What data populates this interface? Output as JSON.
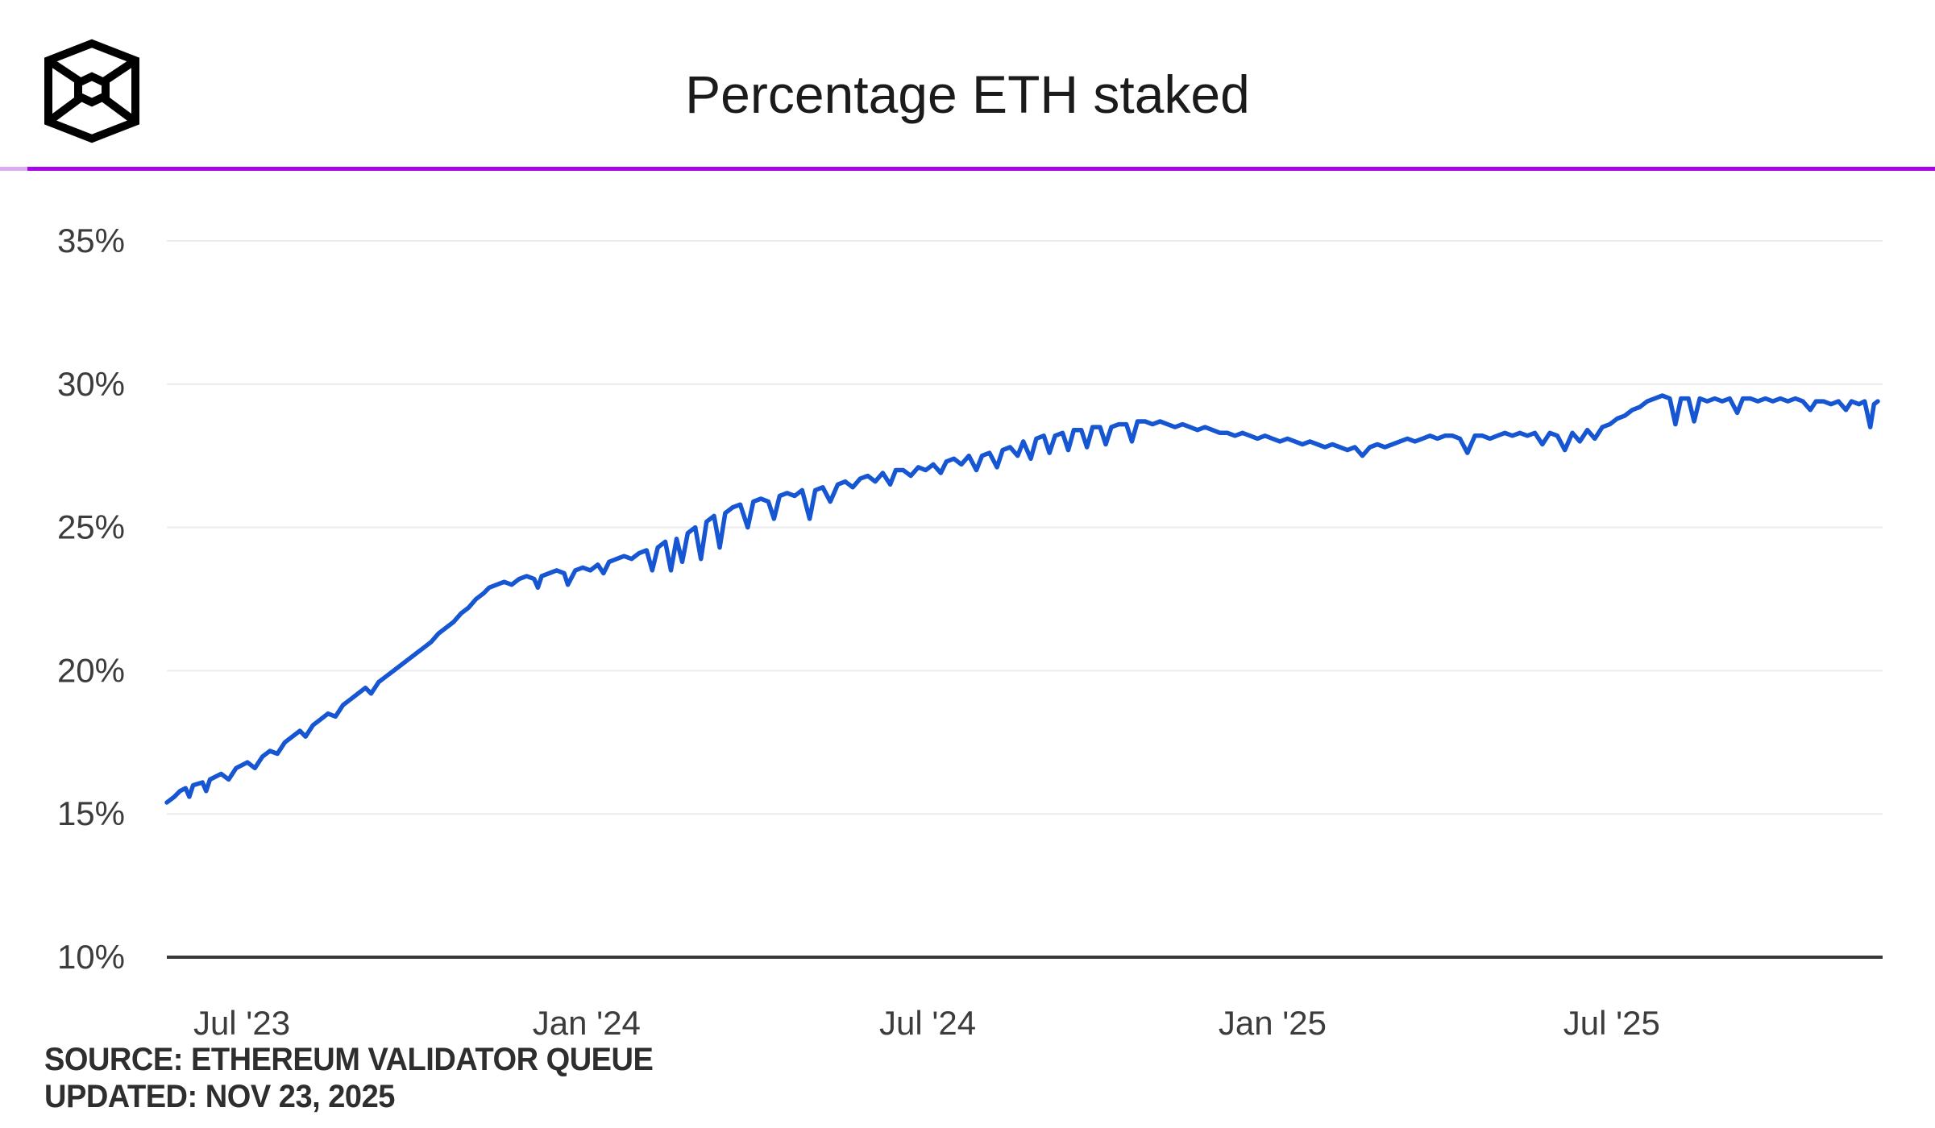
{
  "header": {
    "logo": "blockworks-cube-logo",
    "title": "Percentage ETH staked",
    "divider_color": "#A704E9"
  },
  "footer": {
    "source": "SOURCE: ETHEREUM VALIDATOR QUEUE",
    "updated": "UPDATED: NOV 23, 2025"
  },
  "chart_data": {
    "type": "line",
    "title": "Percentage ETH staked",
    "series_name": "Percentage ETH staked",
    "line_color": "#1656D2",
    "grid": true,
    "grid_color": "#ececec",
    "axis_color": "#383838",
    "tick_color": "#3c3c3c",
    "ylim": [
      10,
      35
    ],
    "y_unit": "%",
    "x_range": [
      "2023-05-22",
      "2025-11-20"
    ],
    "y_ticks": [
      {
        "label": "35%",
        "value": 35
      },
      {
        "label": "30%",
        "value": 30
      },
      {
        "label": "25%",
        "value": 25
      },
      {
        "label": "20%",
        "value": 20
      },
      {
        "label": "15%",
        "value": 15
      },
      {
        "label": "10%",
        "value": 10
      }
    ],
    "x_ticks": [
      {
        "label": "Jul '23",
        "date": "2023-07-01"
      },
      {
        "label": "Jan '24",
        "date": "2024-01-01"
      },
      {
        "label": "Jul '24",
        "date": "2024-07-01"
      },
      {
        "label": "Jan '25",
        "date": "2025-01-01"
      },
      {
        "label": "Jul '25",
        "date": "2025-07-01"
      }
    ],
    "points": [
      [
        "2023-05-22",
        15.4
      ],
      [
        "2023-05-26",
        15.6
      ],
      [
        "2023-05-29",
        15.8
      ],
      [
        "2023-06-01",
        15.9
      ],
      [
        "2023-06-03",
        15.6
      ],
      [
        "2023-06-05",
        16.0
      ],
      [
        "2023-06-10",
        16.1
      ],
      [
        "2023-06-12",
        15.8
      ],
      [
        "2023-06-14",
        16.2
      ],
      [
        "2023-06-20",
        16.4
      ],
      [
        "2023-06-24",
        16.2
      ],
      [
        "2023-06-28",
        16.6
      ],
      [
        "2023-07-04",
        16.8
      ],
      [
        "2023-07-08",
        16.6
      ],
      [
        "2023-07-12",
        17.0
      ],
      [
        "2023-07-16",
        17.2
      ],
      [
        "2023-07-20",
        17.1
      ],
      [
        "2023-07-24",
        17.5
      ],
      [
        "2023-07-28",
        17.7
      ],
      [
        "2023-08-01",
        17.9
      ],
      [
        "2023-08-04",
        17.7
      ],
      [
        "2023-08-08",
        18.1
      ],
      [
        "2023-08-12",
        18.3
      ],
      [
        "2023-08-16",
        18.5
      ],
      [
        "2023-08-20",
        18.4
      ],
      [
        "2023-08-24",
        18.8
      ],
      [
        "2023-08-28",
        19.0
      ],
      [
        "2023-09-01",
        19.2
      ],
      [
        "2023-09-05",
        19.4
      ],
      [
        "2023-09-08",
        19.2
      ],
      [
        "2023-09-12",
        19.6
      ],
      [
        "2023-09-16",
        19.8
      ],
      [
        "2023-09-20",
        20.0
      ],
      [
        "2023-09-24",
        20.2
      ],
      [
        "2023-09-28",
        20.4
      ],
      [
        "2023-10-02",
        20.6
      ],
      [
        "2023-10-06",
        20.8
      ],
      [
        "2023-10-10",
        21.0
      ],
      [
        "2023-10-14",
        21.3
      ],
      [
        "2023-10-18",
        21.5
      ],
      [
        "2023-10-22",
        21.7
      ],
      [
        "2023-10-26",
        22.0
      ],
      [
        "2023-10-30",
        22.2
      ],
      [
        "2023-11-03",
        22.5
      ],
      [
        "2023-11-07",
        22.7
      ],
      [
        "2023-11-10",
        22.9
      ],
      [
        "2023-11-14",
        23.0
      ],
      [
        "2023-11-18",
        23.1
      ],
      [
        "2023-11-22",
        23.0
      ],
      [
        "2023-11-26",
        23.2
      ],
      [
        "2023-11-30",
        23.3
      ],
      [
        "2023-12-04",
        23.2
      ],
      [
        "2023-12-06",
        22.9
      ],
      [
        "2023-12-08",
        23.3
      ],
      [
        "2023-12-12",
        23.4
      ],
      [
        "2023-12-16",
        23.5
      ],
      [
        "2023-12-20",
        23.4
      ],
      [
        "2023-12-22",
        23.0
      ],
      [
        "2023-12-26",
        23.5
      ],
      [
        "2023-12-30",
        23.6
      ],
      [
        "2024-01-03",
        23.5
      ],
      [
        "2024-01-07",
        23.7
      ],
      [
        "2024-01-10",
        23.4
      ],
      [
        "2024-01-13",
        23.8
      ],
      [
        "2024-01-17",
        23.9
      ],
      [
        "2024-01-21",
        24.0
      ],
      [
        "2024-01-25",
        23.9
      ],
      [
        "2024-01-29",
        24.1
      ],
      [
        "2024-02-02",
        24.2
      ],
      [
        "2024-02-05",
        23.5
      ],
      [
        "2024-02-08",
        24.3
      ],
      [
        "2024-02-12",
        24.5
      ],
      [
        "2024-02-15",
        23.5
      ],
      [
        "2024-02-18",
        24.6
      ],
      [
        "2024-02-21",
        23.8
      ],
      [
        "2024-02-24",
        24.8
      ],
      [
        "2024-02-28",
        25.0
      ],
      [
        "2024-03-02",
        23.9
      ],
      [
        "2024-03-05",
        25.2
      ],
      [
        "2024-03-09",
        25.4
      ],
      [
        "2024-03-12",
        24.3
      ],
      [
        "2024-03-15",
        25.5
      ],
      [
        "2024-03-19",
        25.7
      ],
      [
        "2024-03-23",
        25.8
      ],
      [
        "2024-03-27",
        25.0
      ],
      [
        "2024-03-30",
        25.9
      ],
      [
        "2024-04-03",
        26.0
      ],
      [
        "2024-04-07",
        25.9
      ],
      [
        "2024-04-10",
        25.3
      ],
      [
        "2024-04-13",
        26.1
      ],
      [
        "2024-04-17",
        26.2
      ],
      [
        "2024-04-21",
        26.1
      ],
      [
        "2024-04-25",
        26.3
      ],
      [
        "2024-04-29",
        25.3
      ],
      [
        "2024-05-02",
        26.3
      ],
      [
        "2024-05-06",
        26.4
      ],
      [
        "2024-05-10",
        25.9
      ],
      [
        "2024-05-14",
        26.5
      ],
      [
        "2024-05-18",
        26.6
      ],
      [
        "2024-05-22",
        26.4
      ],
      [
        "2024-05-26",
        26.7
      ],
      [
        "2024-05-30",
        26.8
      ],
      [
        "2024-06-03",
        26.6
      ],
      [
        "2024-06-07",
        26.9
      ],
      [
        "2024-06-11",
        26.5
      ],
      [
        "2024-06-14",
        27.0
      ],
      [
        "2024-06-18",
        27.0
      ],
      [
        "2024-06-22",
        26.8
      ],
      [
        "2024-06-26",
        27.1
      ],
      [
        "2024-06-30",
        27.0
      ],
      [
        "2024-07-04",
        27.2
      ],
      [
        "2024-07-08",
        26.9
      ],
      [
        "2024-07-11",
        27.3
      ],
      [
        "2024-07-15",
        27.4
      ],
      [
        "2024-07-19",
        27.2
      ],
      [
        "2024-07-23",
        27.5
      ],
      [
        "2024-07-27",
        27.0
      ],
      [
        "2024-07-30",
        27.5
      ],
      [
        "2024-08-03",
        27.6
      ],
      [
        "2024-08-07",
        27.1
      ],
      [
        "2024-08-10",
        27.7
      ],
      [
        "2024-08-14",
        27.8
      ],
      [
        "2024-08-18",
        27.5
      ],
      [
        "2024-08-21",
        28.0
      ],
      [
        "2024-08-25",
        27.4
      ],
      [
        "2024-08-28",
        28.1
      ],
      [
        "2024-09-01",
        28.2
      ],
      [
        "2024-09-04",
        27.6
      ],
      [
        "2024-09-07",
        28.2
      ],
      [
        "2024-09-11",
        28.3
      ],
      [
        "2024-09-14",
        27.7
      ],
      [
        "2024-09-17",
        28.4
      ],
      [
        "2024-09-21",
        28.4
      ],
      [
        "2024-09-24",
        27.8
      ],
      [
        "2024-09-27",
        28.5
      ],
      [
        "2024-10-01",
        28.5
      ],
      [
        "2024-10-04",
        27.9
      ],
      [
        "2024-10-07",
        28.5
      ],
      [
        "2024-10-11",
        28.6
      ],
      [
        "2024-10-15",
        28.6
      ],
      [
        "2024-10-18",
        28.0
      ],
      [
        "2024-10-21",
        28.7
      ],
      [
        "2024-10-25",
        28.7
      ],
      [
        "2024-10-29",
        28.6
      ],
      [
        "2024-11-02",
        28.7
      ],
      [
        "2024-11-06",
        28.6
      ],
      [
        "2024-11-10",
        28.5
      ],
      [
        "2024-11-14",
        28.6
      ],
      [
        "2024-11-18",
        28.5
      ],
      [
        "2024-11-22",
        28.4
      ],
      [
        "2024-11-26",
        28.5
      ],
      [
        "2024-11-30",
        28.4
      ],
      [
        "2024-12-04",
        28.3
      ],
      [
        "2024-12-08",
        28.3
      ],
      [
        "2024-12-12",
        28.2
      ],
      [
        "2024-12-16",
        28.3
      ],
      [
        "2024-12-20",
        28.2
      ],
      [
        "2024-12-24",
        28.1
      ],
      [
        "2024-12-28",
        28.2
      ],
      [
        "2025-01-01",
        28.1
      ],
      [
        "2025-01-05",
        28.0
      ],
      [
        "2025-01-09",
        28.1
      ],
      [
        "2025-01-13",
        28.0
      ],
      [
        "2025-01-17",
        27.9
      ],
      [
        "2025-01-21",
        28.0
      ],
      [
        "2025-01-25",
        27.9
      ],
      [
        "2025-01-29",
        27.8
      ],
      [
        "2025-02-02",
        27.9
      ],
      [
        "2025-02-06",
        27.8
      ],
      [
        "2025-02-10",
        27.7
      ],
      [
        "2025-02-14",
        27.8
      ],
      [
        "2025-02-18",
        27.5
      ],
      [
        "2025-02-22",
        27.8
      ],
      [
        "2025-02-26",
        27.9
      ],
      [
        "2025-03-02",
        27.8
      ],
      [
        "2025-03-06",
        27.9
      ],
      [
        "2025-03-10",
        28.0
      ],
      [
        "2025-03-14",
        28.1
      ],
      [
        "2025-03-18",
        28.0
      ],
      [
        "2025-03-22",
        28.1
      ],
      [
        "2025-03-26",
        28.2
      ],
      [
        "2025-03-30",
        28.1
      ],
      [
        "2025-04-03",
        28.2
      ],
      [
        "2025-04-07",
        28.2
      ],
      [
        "2025-04-11",
        28.1
      ],
      [
        "2025-04-15",
        27.6
      ],
      [
        "2025-04-19",
        28.2
      ],
      [
        "2025-04-23",
        28.2
      ],
      [
        "2025-04-27",
        28.1
      ],
      [
        "2025-05-01",
        28.2
      ],
      [
        "2025-05-05",
        28.3
      ],
      [
        "2025-05-09",
        28.2
      ],
      [
        "2025-05-13",
        28.3
      ],
      [
        "2025-05-17",
        28.2
      ],
      [
        "2025-05-21",
        28.3
      ],
      [
        "2025-05-25",
        27.9
      ],
      [
        "2025-05-29",
        28.3
      ],
      [
        "2025-06-02",
        28.2
      ],
      [
        "2025-06-06",
        27.7
      ],
      [
        "2025-06-10",
        28.3
      ],
      [
        "2025-06-14",
        28.0
      ],
      [
        "2025-06-18",
        28.4
      ],
      [
        "2025-06-22",
        28.1
      ],
      [
        "2025-06-26",
        28.5
      ],
      [
        "2025-06-30",
        28.6
      ],
      [
        "2025-07-04",
        28.8
      ],
      [
        "2025-07-08",
        28.9
      ],
      [
        "2025-07-12",
        29.1
      ],
      [
        "2025-07-16",
        29.2
      ],
      [
        "2025-07-20",
        29.4
      ],
      [
        "2025-07-24",
        29.5
      ],
      [
        "2025-07-28",
        29.6
      ],
      [
        "2025-08-01",
        29.5
      ],
      [
        "2025-08-04",
        28.6
      ],
      [
        "2025-08-07",
        29.5
      ],
      [
        "2025-08-11",
        29.5
      ],
      [
        "2025-08-14",
        28.7
      ],
      [
        "2025-08-17",
        29.5
      ],
      [
        "2025-08-21",
        29.4
      ],
      [
        "2025-08-25",
        29.5
      ],
      [
        "2025-08-29",
        29.4
      ],
      [
        "2025-09-02",
        29.5
      ],
      [
        "2025-09-06",
        29.0
      ],
      [
        "2025-09-09",
        29.5
      ],
      [
        "2025-09-13",
        29.5
      ],
      [
        "2025-09-17",
        29.4
      ],
      [
        "2025-09-21",
        29.5
      ],
      [
        "2025-09-25",
        29.4
      ],
      [
        "2025-09-29",
        29.5
      ],
      [
        "2025-10-03",
        29.4
      ],
      [
        "2025-10-07",
        29.5
      ],
      [
        "2025-10-11",
        29.4
      ],
      [
        "2025-10-15",
        29.1
      ],
      [
        "2025-10-18",
        29.4
      ],
      [
        "2025-10-22",
        29.4
      ],
      [
        "2025-10-26",
        29.3
      ],
      [
        "2025-10-30",
        29.4
      ],
      [
        "2025-11-03",
        29.1
      ],
      [
        "2025-11-06",
        29.4
      ],
      [
        "2025-11-10",
        29.3
      ],
      [
        "2025-11-13",
        29.4
      ],
      [
        "2025-11-16",
        28.5
      ],
      [
        "2025-11-18",
        29.3
      ],
      [
        "2025-11-20",
        29.4
      ]
    ]
  }
}
